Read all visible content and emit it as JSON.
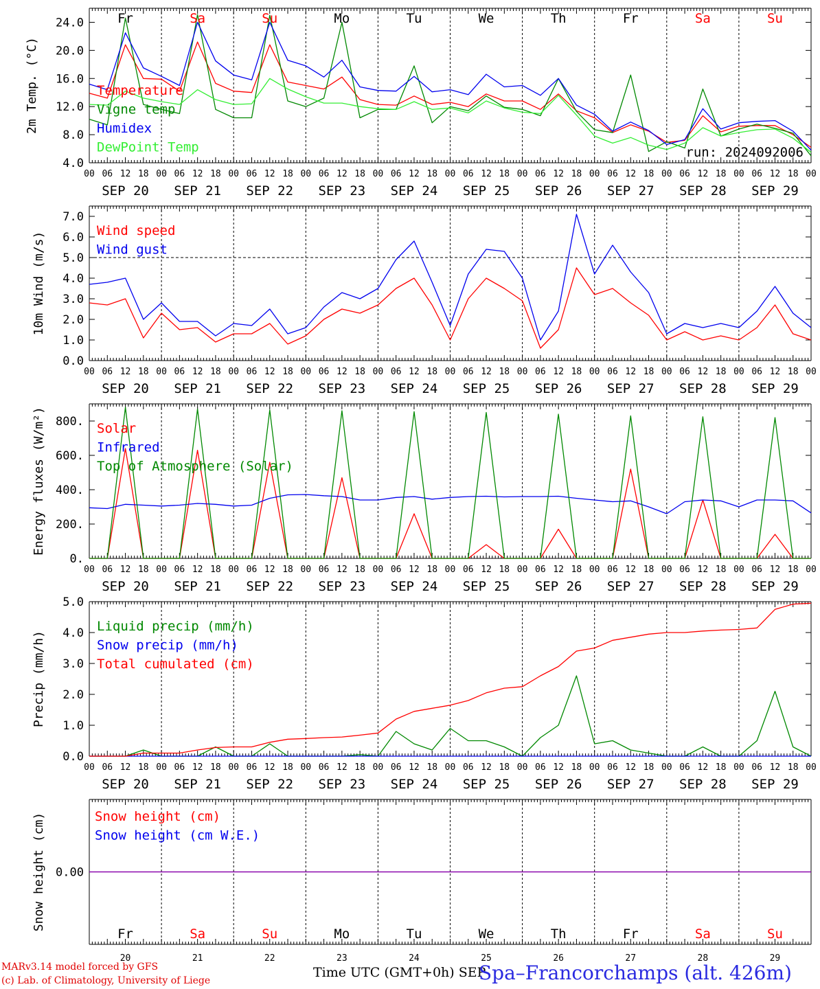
{
  "colors": {
    "red": "#ff0000",
    "green": "#008800",
    "blue": "#0000ee",
    "lightgreen": "#33ee33",
    "purple": "#8800aa",
    "grid": "#000000"
  },
  "x_axis": {
    "hour_labels": [
      "00",
      "06",
      "12",
      "18"
    ],
    "date_labels": [
      "SEP 20",
      "SEP 21",
      "SEP 22",
      "SEP 23",
      "SEP 24",
      "SEP 25",
      "SEP 26",
      "SEP 27",
      "SEP 28",
      "SEP 29"
    ],
    "day_names": [
      "Fr",
      "Sa",
      "Su",
      "Mo",
      "Tu",
      "We",
      "Th",
      "Fr",
      "Sa",
      "Su"
    ],
    "day_numbers": [
      "20",
      "21",
      "22",
      "23",
      "24",
      "25",
      "26",
      "27",
      "28",
      "29"
    ],
    "weekend_flags": [
      false,
      true,
      true,
      false,
      false,
      false,
      false,
      false,
      true,
      true
    ],
    "title": "Time UTC (GMT+0h) SEP"
  },
  "footer": {
    "credit1": "MARv3.14 model forced by GFS",
    "credit2": "(c) Lab. of Climatology, University of Liege",
    "station": "Spa–Francorchamps (alt. 426m)"
  },
  "chart_data": [
    {
      "type": "line",
      "ylabel": "2m Temp. (°C)",
      "ylim": [
        4,
        26
      ],
      "yticks": [
        "4.0",
        "8.0",
        "12.0",
        "16.0",
        "20.0",
        "24.0"
      ],
      "ytick_values": [
        4,
        8,
        12,
        16,
        20,
        24
      ],
      "annotation": "run: 2024092006",
      "x_hours": [
        0,
        6,
        12,
        18,
        24,
        30,
        36,
        42,
        48,
        54,
        60,
        66,
        72,
        78,
        84,
        90,
        96,
        102,
        108,
        114,
        120,
        126,
        132,
        138,
        144,
        150,
        156,
        162,
        168,
        174,
        180,
        186,
        192,
        198,
        204,
        210,
        216,
        222,
        228,
        234,
        240
      ],
      "series": [
        {
          "name": "Temperature",
          "color": "red",
          "values": [
            13.9,
            13.2,
            20.8,
            16.0,
            15.9,
            14.2,
            21.2,
            15.3,
            14.2,
            14.0,
            20.8,
            15.5,
            15.0,
            14.5,
            16.2,
            13.0,
            12.3,
            12.2,
            13.5,
            12.3,
            12.6,
            12.0,
            13.8,
            12.8,
            12.8,
            11.6,
            13.8,
            11.4,
            10.4,
            8.3,
            9.4,
            8.5,
            6.9,
            7.2,
            10.7,
            8.4,
            9.2,
            9.3,
            9.3,
            8.0,
            6.2
          ]
        },
        {
          "name": "Vigne temp",
          "color": "green",
          "values": [
            10.2,
            9.4,
            24.6,
            12.3,
            11.6,
            11.0,
            25.1,
            11.6,
            10.4,
            10.4,
            25.0,
            12.8,
            12.0,
            13.2,
            24.0,
            10.4,
            11.6,
            11.6,
            17.8,
            9.7,
            12.0,
            11.4,
            13.5,
            11.9,
            11.6,
            10.7,
            16.0,
            11.3,
            8.7,
            8.3,
            16.5,
            5.6,
            7.0,
            6.1,
            14.5,
            7.8,
            8.8,
            9.5,
            8.9,
            8.2,
            5.0
          ]
        },
        {
          "name": "Humidex",
          "color": "blue",
          "values": [
            15.2,
            14.4,
            22.5,
            17.5,
            16.3,
            15.0,
            24.0,
            18.5,
            16.5,
            15.8,
            24.0,
            18.6,
            17.8,
            16.2,
            18.6,
            14.8,
            14.3,
            14.2,
            16.3,
            14.1,
            14.4,
            13.7,
            16.6,
            14.8,
            15.0,
            13.6,
            16.0,
            12.2,
            10.9,
            8.5,
            9.8,
            8.6,
            6.6,
            7.3,
            11.7,
            8.8,
            9.7,
            9.9,
            10.0,
            8.5,
            5.8
          ]
        },
        {
          "name": "DewPoint Temp",
          "color": "lightgreen",
          "values": [
            12.3,
            12.2,
            14.2,
            13.2,
            12.7,
            12.3,
            14.4,
            13.0,
            12.3,
            12.4,
            16.0,
            14.5,
            13.4,
            12.5,
            12.5,
            12.0,
            11.7,
            11.6,
            12.7,
            11.6,
            11.8,
            11.1,
            12.8,
            11.8,
            11.2,
            11.0,
            13.6,
            10.8,
            7.8,
            6.8,
            7.6,
            6.5,
            5.9,
            6.8,
            9.0,
            7.8,
            8.3,
            8.7,
            8.8,
            7.5,
            5.5
          ]
        }
      ]
    },
    {
      "type": "line",
      "ylabel": "10m Wind (m/s)",
      "ylim": [
        0,
        7.5
      ],
      "yticks": [
        "0.0",
        "1.0",
        "2.0",
        "3.0",
        "4.0",
        "5.0",
        "6.0",
        "7.0"
      ],
      "ytick_values": [
        0,
        1,
        2,
        3,
        4,
        5,
        6,
        7
      ],
      "reference_line": 5.0,
      "x_hours": [
        0,
        6,
        12,
        18,
        24,
        30,
        36,
        42,
        48,
        54,
        60,
        66,
        72,
        78,
        84,
        90,
        96,
        102,
        108,
        114,
        120,
        126,
        132,
        138,
        144,
        150,
        156,
        162,
        168,
        174,
        180,
        186,
        192,
        198,
        204,
        210,
        216,
        222,
        228,
        234,
        240
      ],
      "series": [
        {
          "name": "Wind speed",
          "color": "red",
          "values": [
            2.8,
            2.7,
            3.0,
            1.1,
            2.3,
            1.5,
            1.6,
            0.9,
            1.3,
            1.3,
            1.8,
            0.8,
            1.2,
            2.0,
            2.5,
            2.3,
            2.7,
            3.5,
            4.0,
            2.7,
            1.0,
            3.0,
            4.0,
            3.5,
            2.9,
            0.6,
            1.5,
            4.5,
            3.2,
            3.5,
            2.8,
            2.2,
            1.0,
            1.4,
            1.0,
            1.2,
            1.0,
            1.6,
            2.7,
            1.3,
            1.0
          ]
        },
        {
          "name": "Wind gust",
          "color": "blue",
          "values": [
            3.7,
            3.8,
            4.0,
            2.0,
            2.8,
            1.9,
            1.9,
            1.2,
            1.8,
            1.7,
            2.5,
            1.3,
            1.6,
            2.6,
            3.3,
            3.0,
            3.5,
            4.9,
            5.8,
            3.8,
            1.7,
            4.2,
            5.4,
            5.3,
            4.0,
            1.0,
            2.4,
            7.1,
            4.2,
            5.6,
            4.3,
            3.3,
            1.3,
            1.8,
            1.6,
            1.8,
            1.6,
            2.4,
            3.6,
            2.3,
            1.6
          ]
        }
      ]
    },
    {
      "type": "line",
      "ylabel": "Energy fluxes (W/m²)",
      "ylim": [
        0,
        900
      ],
      "yticks": [
        "0.",
        "200.",
        "400.",
        "600.",
        "800."
      ],
      "ytick_values": [
        0,
        200,
        400,
        600,
        800
      ],
      "x_hours": [
        0,
        6,
        12,
        18,
        24,
        30,
        36,
        42,
        48,
        54,
        60,
        66,
        72,
        78,
        84,
        90,
        96,
        102,
        108,
        114,
        120,
        126,
        132,
        138,
        144,
        150,
        156,
        162,
        168,
        174,
        180,
        186,
        192,
        198,
        204,
        210,
        216,
        222,
        228,
        234,
        240
      ],
      "series": [
        {
          "name": "Solar",
          "color": "red",
          "values": [
            0,
            0,
            640,
            0,
            0,
            0,
            630,
            0,
            0,
            0,
            560,
            0,
            0,
            0,
            470,
            0,
            0,
            0,
            260,
            0,
            0,
            0,
            80,
            0,
            0,
            0,
            170,
            0,
            0,
            0,
            520,
            0,
            0,
            0,
            340,
            0,
            0,
            0,
            140,
            0,
            0
          ]
        },
        {
          "name": "Infrared",
          "color": "blue",
          "values": [
            295,
            290,
            315,
            310,
            305,
            310,
            320,
            315,
            305,
            310,
            350,
            370,
            372,
            365,
            360,
            340,
            340,
            355,
            360,
            345,
            355,
            360,
            362,
            358,
            360,
            360,
            362,
            350,
            340,
            330,
            335,
            300,
            260,
            330,
            340,
            335,
            300,
            340,
            340,
            335,
            265
          ]
        },
        {
          "name": "Top of Atmosphere (Solar)",
          "color": "green",
          "values": [
            0,
            0,
            880,
            0,
            0,
            0,
            870,
            0,
            0,
            0,
            865,
            0,
            0,
            0,
            860,
            0,
            0,
            0,
            855,
            0,
            0,
            0,
            850,
            0,
            0,
            0,
            840,
            0,
            0,
            0,
            830,
            0,
            0,
            0,
            825,
            0,
            0,
            0,
            820,
            0,
            0
          ]
        }
      ]
    },
    {
      "type": "line",
      "ylabel": "Precip (mm/h)",
      "ylim": [
        0,
        5
      ],
      "yticks": [
        "0.0",
        "1.0",
        "2.0",
        "3.0",
        "4.0",
        "5.0"
      ],
      "ytick_values": [
        0,
        1,
        2,
        3,
        4,
        5
      ],
      "x_hours": [
        0,
        6,
        12,
        18,
        24,
        30,
        36,
        42,
        48,
        54,
        60,
        66,
        72,
        78,
        84,
        90,
        96,
        102,
        108,
        114,
        120,
        126,
        132,
        138,
        144,
        150,
        156,
        162,
        168,
        174,
        180,
        186,
        192,
        198,
        204,
        210,
        216,
        222,
        228,
        234,
        240
      ],
      "series": [
        {
          "name": "Liquid precip (mm/h)",
          "color": "green",
          "values": [
            0,
            0,
            0,
            0.2,
            0,
            0,
            0,
            0.3,
            0,
            0,
            0.4,
            0,
            0,
            0,
            0,
            0.05,
            0,
            0.8,
            0.4,
            0.2,
            0.9,
            0.5,
            0.5,
            0.3,
            0,
            0.6,
            1.0,
            2.6,
            0.4,
            0.5,
            0.2,
            0.1,
            0,
            0,
            0.3,
            0,
            0,
            0.5,
            2.1,
            0.3,
            0
          ]
        },
        {
          "name": "Snow precip (mm/h)",
          "color": "blue",
          "values": [
            0,
            0,
            0,
            0,
            0,
            0,
            0,
            0,
            0,
            0,
            0,
            0,
            0,
            0,
            0,
            0,
            0,
            0,
            0,
            0,
            0,
            0,
            0,
            0,
            0,
            0,
            0,
            0,
            0,
            0,
            0,
            0,
            0,
            0,
            0,
            0,
            0,
            0,
            0,
            0,
            0
          ]
        },
        {
          "name": "Total cumulated (cm)",
          "color": "red",
          "values": [
            0,
            0,
            0,
            0.1,
            0.1,
            0.1,
            0.2,
            0.28,
            0.3,
            0.3,
            0.45,
            0.55,
            0.57,
            0.6,
            0.62,
            0.68,
            0.75,
            1.2,
            1.45,
            1.55,
            1.65,
            1.8,
            2.05,
            2.2,
            2.25,
            2.6,
            2.9,
            3.4,
            3.5,
            3.75,
            3.85,
            3.95,
            4.0,
            4.0,
            4.05,
            4.08,
            4.1,
            4.15,
            4.75,
            4.92,
            4.95
          ]
        }
      ]
    },
    {
      "type": "line",
      "ylabel": "Snow height (cm)",
      "ylim": [
        -1,
        1
      ],
      "yticks": [
        "0.00"
      ],
      "ytick_values": [
        0
      ],
      "x_hours": [
        0,
        240
      ],
      "series": [
        {
          "name": "Snow height (cm)",
          "color": "red",
          "values": [
            0,
            0
          ]
        },
        {
          "name": "Snow height (cm W.E.)",
          "color": "blue",
          "values": [
            0,
            0
          ]
        }
      ]
    }
  ]
}
